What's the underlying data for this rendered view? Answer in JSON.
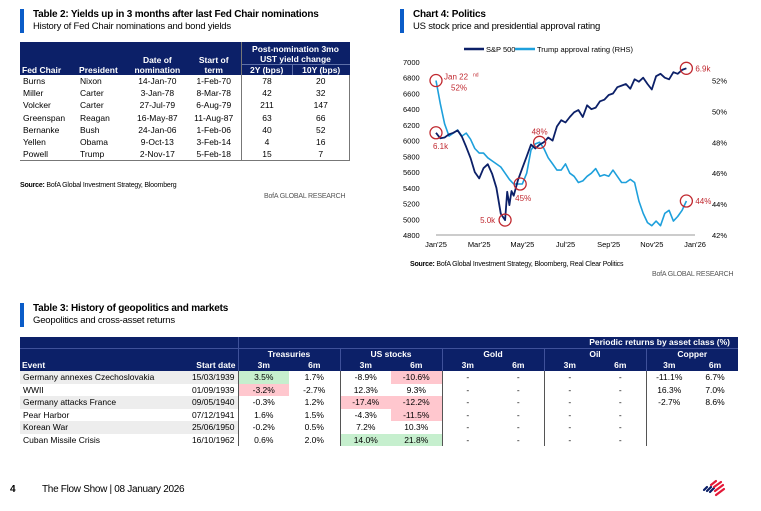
{
  "table2": {
    "title": "Table 2: Yields up in 3 months after last Fed Chair nominations",
    "subtitle": "History of Fed Chair nominations and bond yields",
    "headers": {
      "fed_chair": "Fed Chair",
      "president": "President",
      "date_of_nomination": "Date of nomination",
      "date_line1": "Date of",
      "date_line2": "nomination",
      "start_line1": "Start of",
      "start_line2": "term",
      "post_line1": "Post-nomination 3mo",
      "post_line2": "UST yield change",
      "two_y": "2Y (bps)",
      "ten_y": "10Y (bps)"
    },
    "rows": [
      {
        "chair": "Burns",
        "president": "Nixon",
        "nomination": "14-Jan-70",
        "start": "1-Feb-70",
        "y2": "78",
        "y10": "20"
      },
      {
        "chair": "Miller",
        "president": "Carter",
        "nomination": "3-Jan-78",
        "start": "8-Mar-78",
        "y2": "42",
        "y10": "32"
      },
      {
        "chair": "Volcker",
        "president": "Carter",
        "nomination": "27-Jul-79",
        "start": "6-Aug-79",
        "y2": "211",
        "y10": "147"
      },
      {
        "chair": "Greenspan",
        "president": "Reagan",
        "nomination": "16-May-87",
        "start": "11-Aug-87",
        "y2": "63",
        "y10": "66"
      },
      {
        "chair": "Bernanke",
        "president": "Bush",
        "nomination": "24-Jan-06",
        "start": "1-Feb-06",
        "y2": "40",
        "y10": "52"
      },
      {
        "chair": "Yellen",
        "president": "Obama",
        "nomination": "9-Oct-13",
        "start": "3-Feb-14",
        "y2": "4",
        "y10": "16"
      },
      {
        "chair": "Powell",
        "president": "Trump",
        "nomination": "2-Nov-17",
        "start": "5-Feb-18",
        "y2": "15",
        "y10": "7"
      }
    ],
    "source_label": "Source:",
    "source_text": " BofA Global Investment Strategy, Bloomberg",
    "brand": "BofA GLOBAL RESEARCH"
  },
  "chart4": {
    "title": "Chart 4: Politics",
    "subtitle": "US stock price and presidential approval rating",
    "source_label": "Source:",
    "source_text": " BofA Global Investment Strategy, Bloomberg, Real Clear Politics",
    "brand": "BofA GLOBAL RESEARCH"
  },
  "chart_data": {
    "type": "line",
    "title": "Chart 4: Politics",
    "subtitle": "US stock price and presidential approval rating",
    "x_tick_labels": [
      "Jan'25",
      "Mar'25",
      "May'25",
      "Jul'25",
      "Sep'25",
      "Nov'25",
      "Jan'26"
    ],
    "y_left": {
      "ticks": [
        4800,
        5000,
        5200,
        5400,
        5600,
        5800,
        6000,
        6200,
        6400,
        6600,
        6800,
        7000
      ],
      "range": [
        4800,
        7000
      ]
    },
    "y_right": {
      "ticks": [
        "42%",
        "44%",
        "46%",
        "48%",
        "50%",
        "52%"
      ],
      "range": [
        42,
        53.2
      ]
    },
    "legend": [
      "S&P 500",
      "Trump approval rating (RHS)"
    ],
    "legend_position": "top",
    "colors": {
      "sp500": "#0c2068",
      "approval": "#1ea0dc",
      "annotation": "#c0282f"
    },
    "series": [
      {
        "name": "S&P 500",
        "axis": "left",
        "x_months": [
          0,
          0.2,
          0.4,
          0.6,
          0.8,
          1.0,
          1.2,
          1.4,
          1.6,
          1.8,
          2.0,
          2.2,
          2.4,
          2.6,
          2.8,
          3.0,
          3.1,
          3.2,
          3.3,
          3.4,
          3.5,
          3.6,
          3.8,
          4.0,
          4.2,
          4.4,
          4.6,
          4.8,
          5.0,
          5.2,
          5.4,
          5.6,
          5.8,
          6.0,
          6.2,
          6.4,
          6.6,
          6.8,
          7.0,
          7.2,
          7.4,
          7.6,
          7.8,
          8.0,
          8.2,
          8.4,
          8.6,
          8.8,
          9.0,
          9.2,
          9.4,
          9.6,
          9.8,
          10.0,
          10.2,
          10.4,
          10.6,
          10.8,
          11.0,
          11.2,
          11.4,
          11.6
        ],
        "values": [
          6100,
          6030,
          6040,
          6080,
          6100,
          6130,
          6050,
          5920,
          5780,
          5600,
          5520,
          5650,
          5700,
          5580,
          5400,
          5070,
          5030,
          4990,
          5350,
          5180,
          5360,
          5300,
          5500,
          5650,
          5800,
          5950,
          5900,
          5950,
          5980,
          6040,
          6000,
          6180,
          6260,
          6230,
          6300,
          6360,
          6390,
          6300,
          6450,
          6400,
          6420,
          6500,
          6520,
          6580,
          6600,
          6680,
          6700,
          6720,
          6660,
          6780,
          6750,
          6800,
          6720,
          6650,
          6820,
          6850,
          6800,
          6780,
          6870,
          6850,
          6900,
          6920
        ]
      },
      {
        "name": "Trump approval rating (RHS)",
        "axis": "right",
        "x_months": [
          0,
          0.2,
          0.4,
          0.6,
          0.8,
          1.0,
          1.2,
          1.4,
          1.6,
          1.8,
          2.0,
          2.2,
          2.4,
          2.6,
          2.8,
          3.0,
          3.2,
          3.4,
          3.6,
          3.8,
          4.0,
          4.2,
          4.4,
          4.6,
          4.8,
          5.0,
          5.2,
          5.4,
          5.6,
          5.8,
          6.0,
          6.2,
          6.4,
          6.6,
          6.8,
          7.0,
          7.2,
          7.4,
          7.6,
          7.8,
          8.0,
          8.2,
          8.4,
          8.6,
          8.8,
          9.0,
          9.2,
          9.4,
          9.6,
          9.8,
          10.0,
          10.2,
          10.4,
          10.6,
          10.8,
          11.0,
          11.2,
          11.4,
          11.6
        ],
        "values": [
          52.0,
          50.5,
          49.2,
          48.4,
          48.6,
          48.8,
          48.4,
          48.6,
          48.2,
          47.6,
          47.3,
          47.3,
          47.0,
          46.8,
          46.6,
          46.4,
          46.0,
          45.6,
          45.3,
          45.3,
          45.3,
          46.0,
          47.5,
          47.9,
          48.0,
          47.6,
          47.0,
          46.6,
          46.2,
          46.2,
          46.6,
          46.0,
          45.8,
          45.4,
          45.5,
          45.8,
          46.0,
          46.3,
          45.8,
          45.9,
          45.8,
          46.2,
          45.8,
          45.4,
          45.4,
          45.6,
          45.4,
          44.2,
          43.4,
          42.8,
          42.6,
          42.9,
          42.6,
          43.4,
          43.6,
          42.9,
          43.2,
          43.6,
          44.2
        ]
      }
    ],
    "annotations": [
      {
        "text": "Jan 22nd",
        "sup": "nd",
        "value": "52%",
        "series": "approval"
      },
      {
        "text": "6.1k",
        "series": "sp500"
      },
      {
        "text": "5.0k",
        "series": "sp500"
      },
      {
        "text": "45%",
        "series": "approval"
      },
      {
        "text": "48%",
        "series": "approval"
      },
      {
        "text": "6.9k",
        "series": "sp500"
      },
      {
        "text": "44%",
        "series": "approval"
      }
    ],
    "annotation_labels": {
      "jan22_a": "Jan 22",
      "jan22_sup": "nd",
      "jan22_b": "52%",
      "k61": "6.1k",
      "k50": "5.0k",
      "p45": "45%",
      "p48": "48%",
      "k69": "6.9k",
      "p44": "44%"
    }
  },
  "table3": {
    "title": "Table 3: History of geopolitics and markets",
    "subtitle": "Geopolitics and cross-asset returns",
    "super_header": "Periodic returns by asset class (%)",
    "event_header": "Event",
    "start_header": "Start date",
    "asset_classes": [
      "Treasuries",
      "US stocks",
      "Gold",
      "Oil",
      "Copper"
    ],
    "periods": [
      "3m",
      "6m"
    ],
    "rows": [
      {
        "event": "Germany annexes Czechoslovakia",
        "start": "15/03/1939",
        "values": [
          "3.5%",
          "1.7%",
          "-8.9%",
          "-10.6%",
          "-",
          "-",
          "-",
          "-",
          "-11.1%",
          "6.7%"
        ],
        "highlight": [
          "pos",
          "",
          "",
          "neg",
          "",
          "",
          "",
          "",
          "",
          ""
        ]
      },
      {
        "event": "WWII",
        "start": "01/09/1939",
        "values": [
          "-3.2%",
          "-2.7%",
          "12.3%",
          "9.3%",
          "-",
          "-",
          "-",
          "-",
          "16.3%",
          "7.0%"
        ],
        "highlight": [
          "neg",
          "",
          "",
          "",
          "",
          "",
          "",
          "",
          "",
          ""
        ]
      },
      {
        "event": "Germany attacks France",
        "start": "09/05/1940",
        "values": [
          "-0.3%",
          "1.2%",
          "-17.4%",
          "-12.2%",
          "-",
          "-",
          "-",
          "-",
          "-2.7%",
          "8.6%"
        ],
        "highlight": [
          "",
          "",
          "neg",
          "neg",
          "",
          "",
          "",
          "",
          "",
          ""
        ]
      },
      {
        "event": "Pear Harbor",
        "start": "07/12/1941",
        "values": [
          "1.6%",
          "1.5%",
          "-4.3%",
          "-11.5%",
          "-",
          "-",
          "-",
          "-",
          "",
          ""
        ],
        "highlight": [
          "",
          "",
          "",
          "neg",
          "",
          "",
          "",
          "",
          "",
          ""
        ]
      },
      {
        "event": "Korean War",
        "start": "25/06/1950",
        "values": [
          "-0.2%",
          "0.5%",
          "7.2%",
          "10.3%",
          "-",
          "-",
          "-",
          "-",
          "",
          ""
        ],
        "highlight": [
          "",
          "",
          "",
          "",
          "",
          "",
          "",
          "",
          "",
          ""
        ]
      },
      {
        "event": "Cuban Missile Crisis",
        "start": "16/10/1962",
        "values": [
          "0.6%",
          "2.0%",
          "14.0%",
          "21.8%",
          "-",
          "-",
          "-",
          "-",
          "",
          ""
        ],
        "highlight": [
          "",
          "",
          "pos",
          "pos",
          "",
          "",
          "",
          "",
          "",
          ""
        ]
      }
    ]
  },
  "footer": {
    "page_number": "4",
    "publication": "The Flow Show | 08 January 2026",
    "logo": "bank-flag-logo"
  }
}
